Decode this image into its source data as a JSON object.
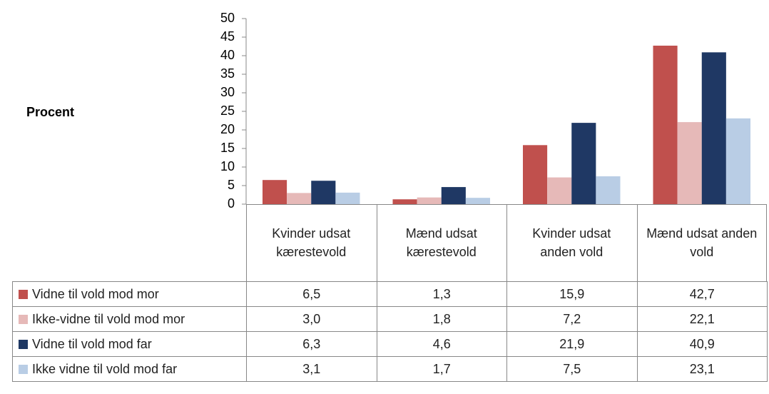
{
  "chart_data": {
    "type": "bar",
    "ylabel": "Procent",
    "categories": [
      "Kvinder udsat kærestevold",
      "Mænd udsat kærestevold",
      "Kvinder udsat anden vold",
      "Mænd udsat anden vold"
    ],
    "series": [
      {
        "name": "Vidne til vold mod mor",
        "color": "#c0504d",
        "values": [
          6.5,
          1.3,
          15.9,
          42.7
        ],
        "value_labels": [
          "6,5",
          "1,3",
          "15,9",
          "42,7"
        ]
      },
      {
        "name": "Ikke-vidne til vold mod mor",
        "color": "#e6b9b8",
        "values": [
          3.0,
          1.8,
          7.2,
          22.1
        ],
        "value_labels": [
          "3,0",
          "1,8",
          "7,2",
          "22,1"
        ]
      },
      {
        "name": "Vidne til vold mod far",
        "color": "#1f3864",
        "values": [
          6.3,
          4.6,
          21.9,
          40.9
        ],
        "value_labels": [
          "6,3",
          "4,6",
          "21,9",
          "40,9"
        ]
      },
      {
        "name": "Ikke vidne til vold mod far",
        "color": "#b9cde5",
        "values": [
          3.1,
          1.7,
          7.5,
          23.1
        ],
        "value_labels": [
          "3,1",
          "1,7",
          "7,5",
          "23,1"
        ]
      }
    ],
    "ylim": [
      0,
      50
    ],
    "yticks": [
      0,
      5,
      10,
      15,
      20,
      25,
      30,
      35,
      40,
      45,
      50
    ],
    "grid": false
  }
}
